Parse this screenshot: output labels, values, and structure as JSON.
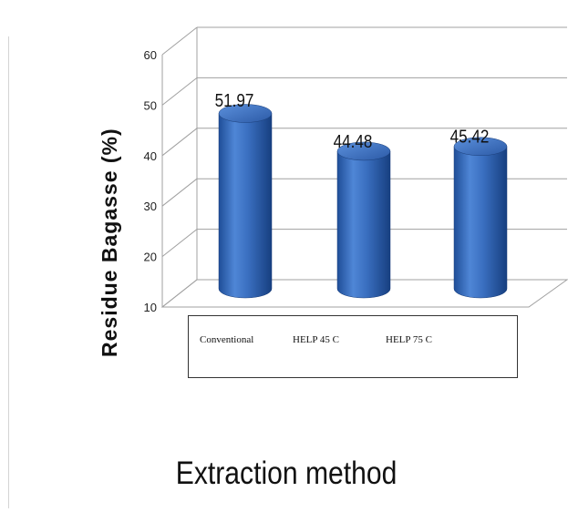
{
  "chart_data": {
    "type": "bar",
    "categories": [
      "Conventional",
      "HELP 45 C",
      "HELP 75 C"
    ],
    "values": [
      51.97,
      44.48,
      45.42
    ],
    "data_labels": [
      "51.97",
      "44.48",
      "45.42"
    ],
    "xlabel": "Extraction method",
    "ylabel": "Residue Bagasse (%)",
    "ylim": [
      10,
      60
    ],
    "yticks": [
      "10",
      "20",
      "30",
      "40",
      "50",
      "60"
    ],
    "grid": true,
    "style": "3d-cylinder",
    "bar_color": "#3a6fc0"
  }
}
